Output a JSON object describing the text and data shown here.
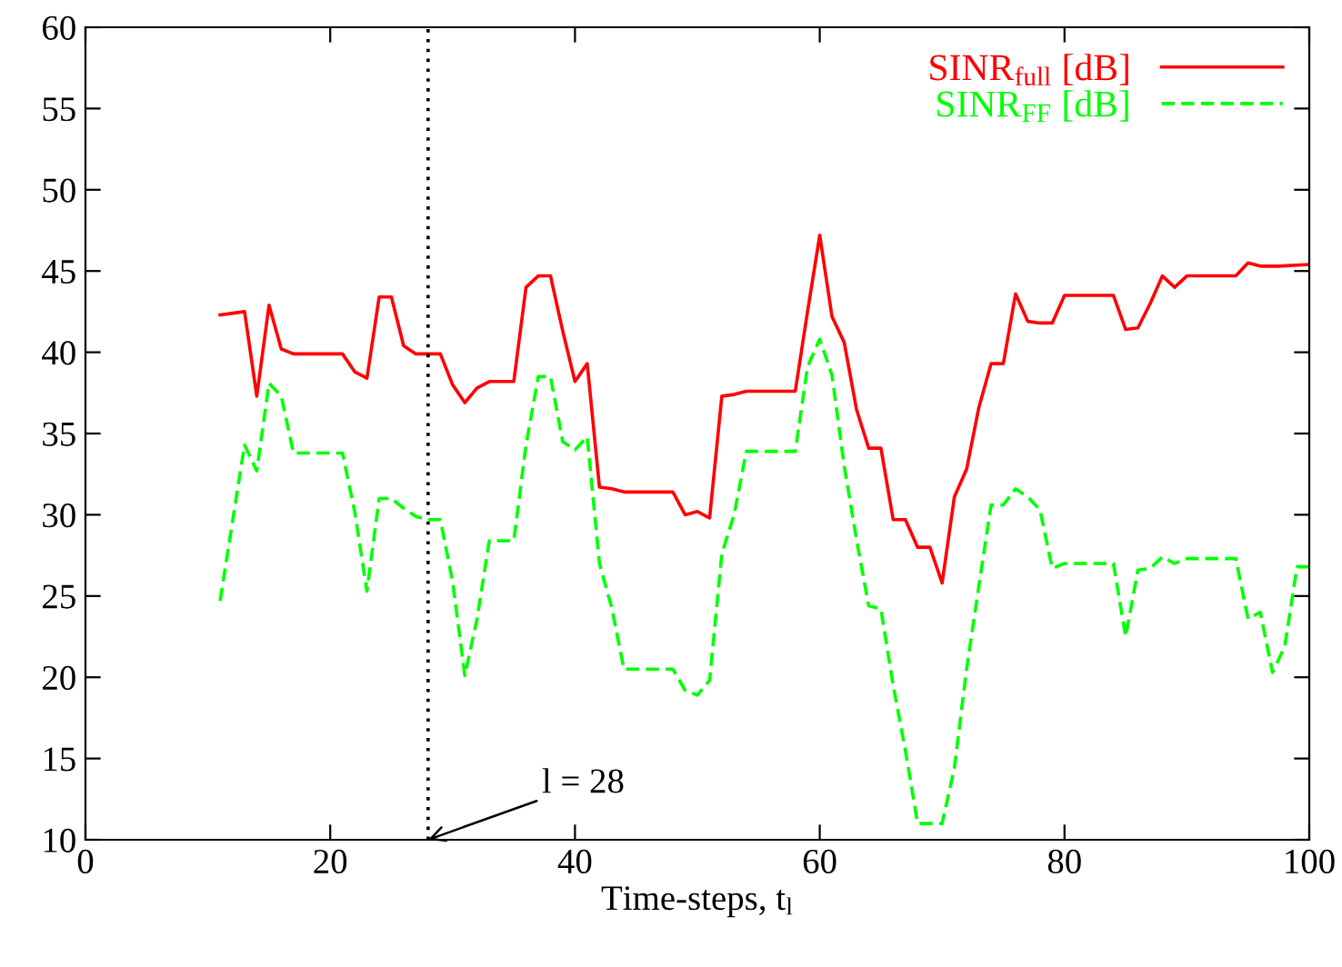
{
  "chart_data": {
    "type": "line",
    "xlabel": "Time-steps, t$_{l}$",
    "xlim": [
      0,
      100
    ],
    "xticks": [
      0,
      20,
      40,
      60,
      80,
      100
    ],
    "ylim": [
      10,
      60
    ],
    "yticks": [
      10,
      15,
      20,
      25,
      30,
      35,
      40,
      45,
      50,
      55,
      60
    ],
    "grid": false,
    "legend": "top right",
    "marker": "none",
    "series": [
      {
        "name": "SINR$_{full}$ [dB]",
        "color": "#ff0000",
        "line_style": "solid",
        "x": [
          11,
          13,
          14,
          15,
          16,
          17,
          21,
          22,
          23,
          24,
          25,
          26,
          27,
          29,
          30,
          31,
          32,
          33,
          35,
          36,
          37,
          38,
          39,
          40,
          41,
          42,
          43,
          44,
          48,
          49,
          50,
          51,
          52,
          53,
          54,
          58,
          59,
          60,
          61,
          62,
          63,
          64,
          65,
          66,
          67,
          68,
          69,
          70,
          71,
          72,
          73,
          74,
          75,
          76,
          77,
          78,
          79,
          80,
          84,
          85,
          86,
          87,
          88,
          89,
          90,
          94,
          95,
          96,
          97.5,
          100
        ],
        "values": [
          42.3,
          42.5,
          37.3,
          42.9,
          40.2,
          39.9,
          39.9,
          38.8,
          38.4,
          43.4,
          43.4,
          40.4,
          39.9,
          39.9,
          38.0,
          36.9,
          37.8,
          38.2,
          38.2,
          44.0,
          44.7,
          44.7,
          41.3,
          38.2,
          39.3,
          31.7,
          31.6,
          31.4,
          31.4,
          30.0,
          30.2,
          29.8,
          37.3,
          37.4,
          37.6,
          37.6,
          42.5,
          47.2,
          42.2,
          40.6,
          36.5,
          34.1,
          34.1,
          29.7,
          29.7,
          28.0,
          28.0,
          25.8,
          31.1,
          32.8,
          36.6,
          39.3,
          39.3,
          43.6,
          41.9,
          41.8,
          41.8,
          43.5,
          43.5,
          41.4,
          41.5,
          43.0,
          44.7,
          44.0,
          44.7,
          44.7,
          45.5,
          45.3,
          45.3,
          45.4
        ]
      },
      {
        "name": "SINR$_{FF}$ [dB]",
        "color": "#00ff00",
        "line_style": "dashed",
        "x": [
          11,
          13,
          14,
          15,
          16,
          17,
          21,
          22,
          23,
          24,
          25,
          26,
          27,
          28,
          29,
          30,
          31,
          32,
          33,
          35,
          36,
          37,
          38,
          39,
          40,
          41,
          42,
          43,
          44,
          48,
          49,
          50,
          51,
          52,
          53,
          54,
          58,
          59,
          60,
          61,
          62,
          63,
          64,
          65,
          66,
          67,
          68,
          70,
          71,
          72,
          73,
          74,
          75,
          76,
          77,
          78,
          79,
          80,
          84,
          85,
          86,
          87,
          88,
          89,
          90,
          94,
          95,
          96,
          97,
          98,
          99,
          100
        ],
        "values": [
          24.7,
          34.3,
          32.7,
          38.1,
          37.3,
          33.8,
          33.8,
          30.2,
          25.3,
          31.0,
          31.0,
          30.4,
          29.9,
          29.7,
          29.7,
          25.9,
          20.1,
          23.6,
          28.4,
          28.4,
          34.3,
          38.5,
          38.5,
          34.5,
          34.0,
          34.8,
          27.0,
          24.3,
          20.5,
          20.5,
          19.2,
          18.9,
          19.8,
          27.6,
          30.0,
          33.9,
          33.9,
          39.1,
          40.8,
          38.6,
          33.0,
          28.5,
          24.4,
          24.2,
          19.5,
          15.5,
          11.0,
          11.0,
          14.4,
          20.5,
          25.6,
          30.6,
          30.6,
          31.6,
          31.1,
          30.3,
          26.7,
          27.0,
          27.0,
          22.5,
          26.6,
          26.7,
          27.4,
          27.0,
          27.3,
          27.3,
          23.6,
          24.0,
          20.3,
          21.9,
          26.8,
          26.8
        ]
      }
    ],
    "ref_lines": [
      {
        "axis": "x",
        "value": 28,
        "color": "#000000",
        "line_style": "dotted"
      }
    ],
    "annotations": [
      {
        "text": "l = 28",
        "x": 28,
        "y": 10
      }
    ]
  }
}
